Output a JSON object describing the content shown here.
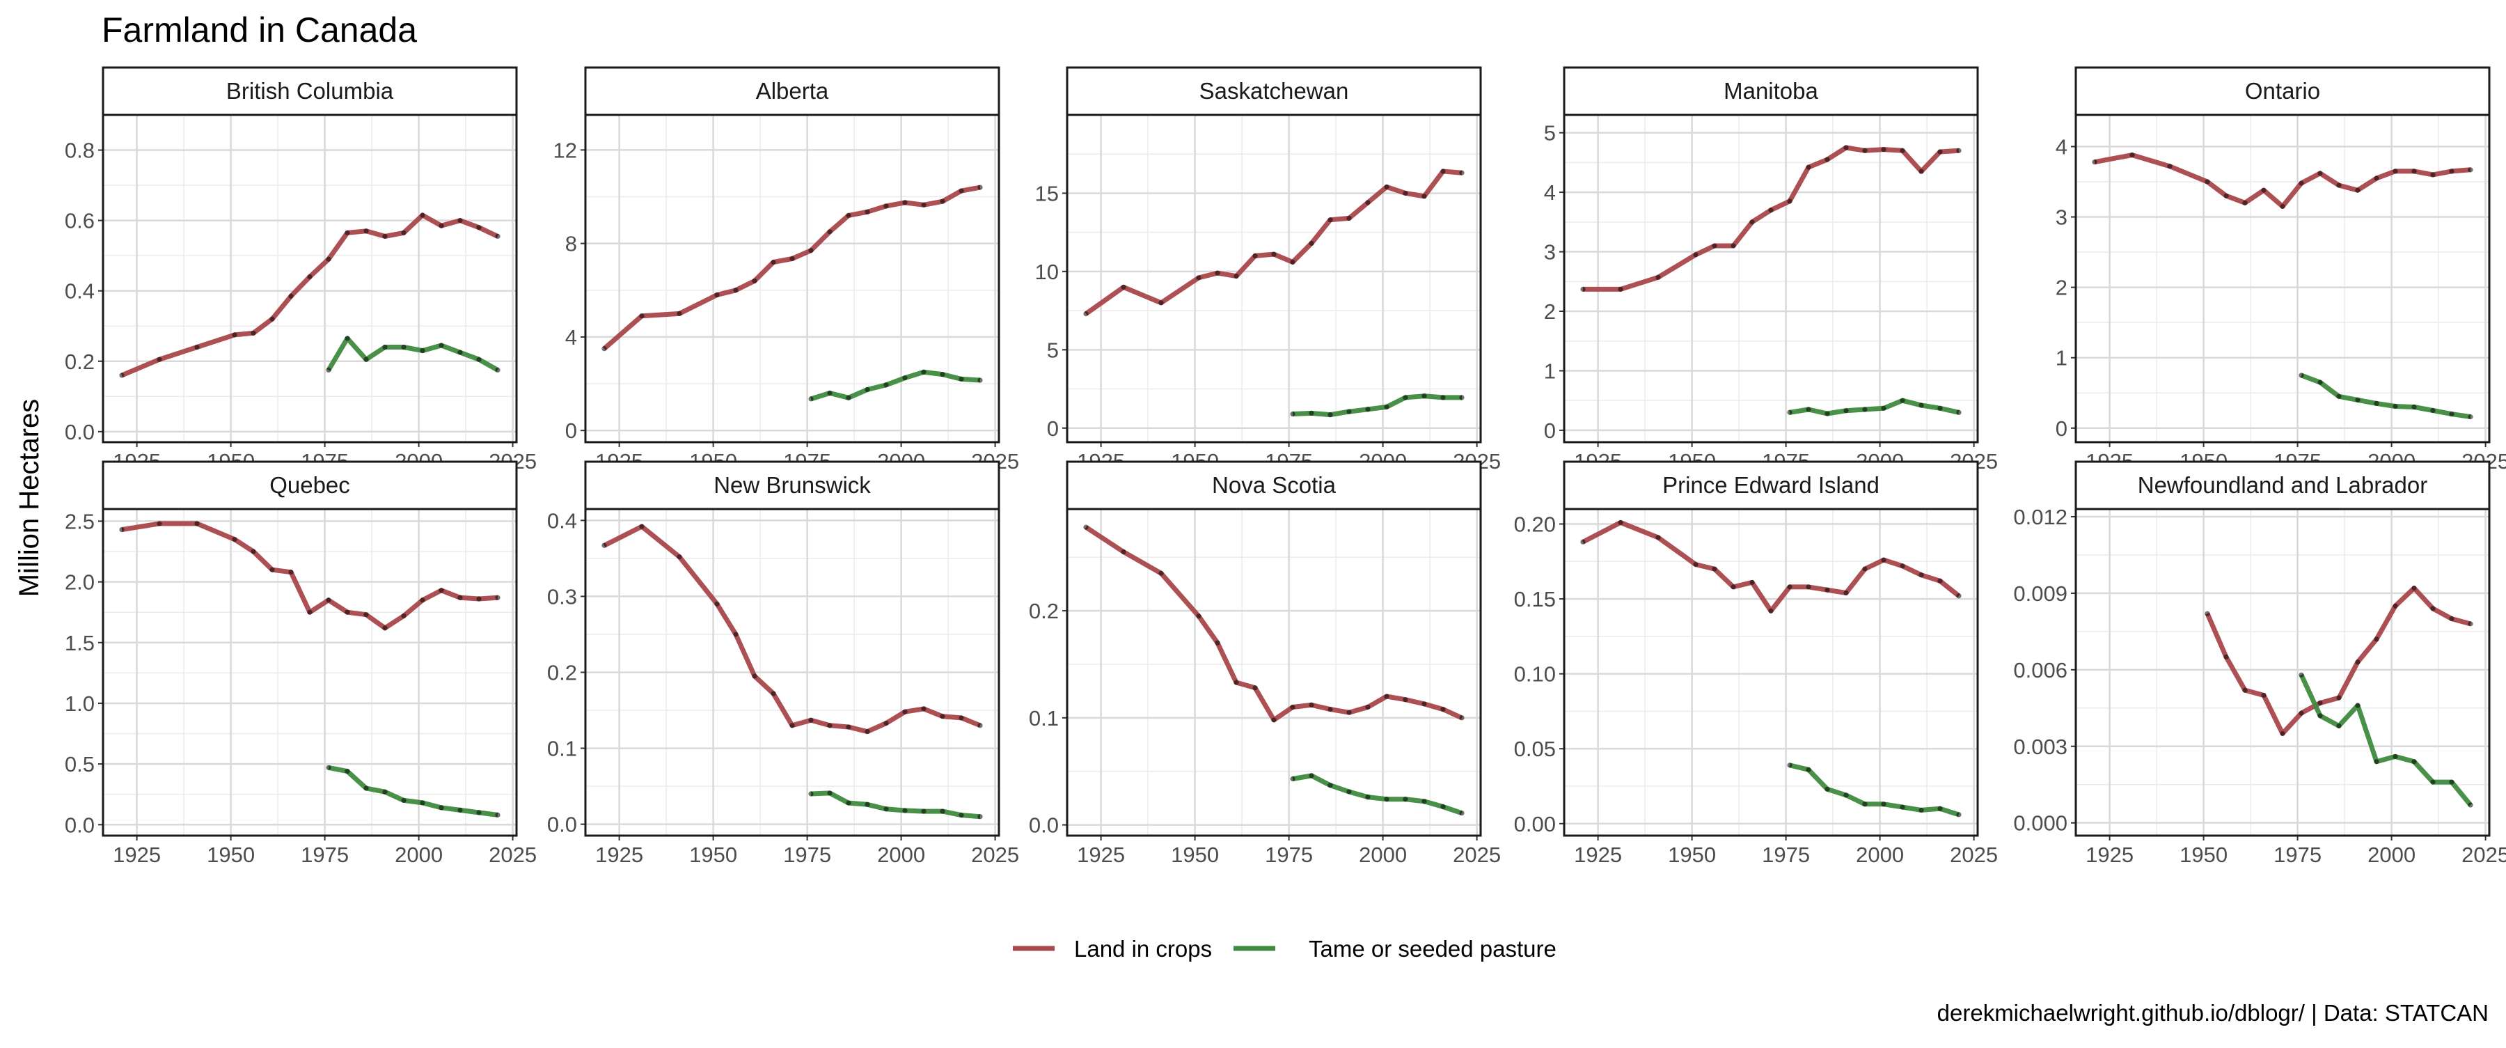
{
  "chart_data": {
    "type": "line",
    "title": "Farmland in Canada",
    "ylabel": "Million Hectares",
    "xlabel": "",
    "caption": "derekmichaelwright.github.io/dblogr/ | Data: STATCAN",
    "x_ticks": [
      1925,
      1950,
      1975,
      2000,
      2025
    ],
    "xlim": [
      1916,
      2026
    ],
    "legend_position": "bottom",
    "grid": true,
    "series_styles": [
      {
        "name": "Land in crops",
        "color": "#a9474b"
      },
      {
        "name": "Tame or seeded pasture",
        "color": "#3f8a3f"
      }
    ],
    "facets": [
      {
        "label": "British Columbia",
        "ylim": [
          -0.03,
          0.9
        ],
        "y_ticks": [
          0.0,
          0.2,
          0.4,
          0.6,
          0.8
        ],
        "y_tick_labels": [
          "0.0",
          "0.2",
          "0.4",
          "0.6",
          "0.8"
        ],
        "series": [
          {
            "name": "Land in crops",
            "x": [
              1921,
              1931,
              1941,
              1951,
              1956,
              1961,
              1966,
              1971,
              1976,
              1981,
              1986,
              1991,
              1996,
              2001,
              2006,
              2011,
              2016,
              2021
            ],
            "values": [
              0.16,
              0.205,
              0.24,
              0.275,
              0.28,
              0.32,
              0.385,
              0.44,
              0.49,
              0.565,
              0.57,
              0.555,
              0.565,
              0.615,
              0.585,
              0.6,
              0.58,
              0.555
            ]
          },
          {
            "name": "Tame or seeded pasture",
            "x": [
              1976,
              1981,
              1986,
              1991,
              1996,
              2001,
              2006,
              2011,
              2016,
              2021
            ],
            "values": [
              0.175,
              0.265,
              0.205,
              0.24,
              0.24,
              0.23,
              0.245,
              0.225,
              0.205,
              0.175
            ]
          }
        ]
      },
      {
        "label": "Alberta",
        "ylim": [
          -0.5,
          13.5
        ],
        "y_ticks": [
          0,
          4,
          8,
          12
        ],
        "y_tick_labels": [
          "0",
          "4",
          "8",
          "12"
        ],
        "series": [
          {
            "name": "Land in crops",
            "x": [
              1921,
              1931,
              1941,
              1951,
              1956,
              1961,
              1966,
              1971,
              1976,
              1981,
              1986,
              1991,
              1996,
              2001,
              2006,
              2011,
              2016,
              2021
            ],
            "values": [
              3.5,
              4.9,
              5.0,
              5.8,
              6.0,
              6.4,
              7.2,
              7.35,
              7.7,
              8.5,
              9.2,
              9.35,
              9.6,
              9.75,
              9.65,
              9.8,
              10.25,
              10.4
            ]
          },
          {
            "name": "Tame or seeded pasture",
            "x": [
              1976,
              1981,
              1986,
              1991,
              1996,
              2001,
              2006,
              2011,
              2016,
              2021
            ],
            "values": [
              1.35,
              1.6,
              1.4,
              1.75,
              1.95,
              2.25,
              2.5,
              2.4,
              2.2,
              2.15
            ]
          }
        ]
      },
      {
        "label": "Saskatchewan",
        "ylim": [
          -0.9,
          20
        ],
        "y_ticks": [
          0,
          5,
          10,
          15
        ],
        "y_tick_labels": [
          "0",
          "5",
          "10",
          "15"
        ],
        "series": [
          {
            "name": "Land in crops",
            "x": [
              1921,
              1931,
              1941,
              1951,
              1956,
              1961,
              1966,
              1971,
              1976,
              1981,
              1986,
              1991,
              1996,
              2001,
              2006,
              2011,
              2016,
              2021
            ],
            "values": [
              7.3,
              9.0,
              8.0,
              9.6,
              9.9,
              9.7,
              11.0,
              11.1,
              10.6,
              11.8,
              13.3,
              13.4,
              14.4,
              15.4,
              15.0,
              14.8,
              16.4,
              16.3
            ]
          },
          {
            "name": "Tame or seeded pasture",
            "x": [
              1976,
              1981,
              1986,
              1991,
              1996,
              2001,
              2006,
              2011,
              2016,
              2021
            ],
            "values": [
              0.9,
              0.95,
              0.85,
              1.05,
              1.2,
              1.35,
              1.95,
              2.05,
              1.95,
              1.95
            ]
          }
        ]
      },
      {
        "label": "Manitoba",
        "ylim": [
          -0.2,
          5.3
        ],
        "y_ticks": [
          0,
          1,
          2,
          3,
          4,
          5
        ],
        "y_tick_labels": [
          "0",
          "1",
          "2",
          "3",
          "4",
          "5"
        ],
        "series": [
          {
            "name": "Land in crops",
            "x": [
              1921,
              1931,
              1941,
              1951,
              1956,
              1961,
              1966,
              1971,
              1976,
              1981,
              1986,
              1991,
              1996,
              2001,
              2006,
              2011,
              2016,
              2021
            ],
            "values": [
              2.37,
              2.37,
              2.57,
              2.95,
              3.1,
              3.1,
              3.5,
              3.7,
              3.85,
              4.42,
              4.55,
              4.75,
              4.7,
              4.72,
              4.7,
              4.35,
              4.68,
              4.7
            ]
          },
          {
            "name": "Tame or seeded pasture",
            "x": [
              1976,
              1981,
              1986,
              1991,
              1996,
              2001,
              2006,
              2011,
              2016,
              2021
            ],
            "values": [
              0.3,
              0.35,
              0.28,
              0.33,
              0.35,
              0.37,
              0.5,
              0.42,
              0.37,
              0.3
            ]
          }
        ]
      },
      {
        "label": "Ontario",
        "ylim": [
          -0.2,
          4.45
        ],
        "y_ticks": [
          0,
          1,
          2,
          3,
          4
        ],
        "y_tick_labels": [
          "0",
          "1",
          "2",
          "3",
          "4"
        ],
        "series": [
          {
            "name": "Land in crops",
            "x": [
              1921,
              1931,
              1941,
              1951,
              1956,
              1961,
              1966,
              1971,
              1976,
              1981,
              1986,
              1991,
              1996,
              2001,
              2006,
              2011,
              2016,
              2021
            ],
            "values": [
              3.78,
              3.88,
              3.72,
              3.5,
              3.3,
              3.2,
              3.38,
              3.15,
              3.48,
              3.62,
              3.45,
              3.38,
              3.55,
              3.65,
              3.65,
              3.6,
              3.65,
              3.67
            ]
          },
          {
            "name": "Tame or seeded pasture",
            "x": [
              1976,
              1981,
              1986,
              1991,
              1996,
              2001,
              2006,
              2011,
              2016,
              2021
            ],
            "values": [
              0.75,
              0.65,
              0.45,
              0.4,
              0.35,
              0.31,
              0.3,
              0.25,
              0.2,
              0.16
            ]
          }
        ]
      },
      {
        "label": "Quebec",
        "ylim": [
          -0.09,
          2.6
        ],
        "y_ticks": [
          0.0,
          0.5,
          1.0,
          1.5,
          2.0,
          2.5
        ],
        "y_tick_labels": [
          "0.0",
          "0.5",
          "1.0",
          "1.5",
          "2.0",
          "2.5"
        ],
        "series": [
          {
            "name": "Land in crops",
            "x": [
              1921,
              1931,
              1941,
              1951,
              1956,
              1961,
              1966,
              1971,
              1976,
              1981,
              1986,
              1991,
              1996,
              2001,
              2006,
              2011,
              2016,
              2021
            ],
            "values": [
              2.43,
              2.48,
              2.48,
              2.35,
              2.25,
              2.1,
              2.08,
              1.75,
              1.85,
              1.75,
              1.73,
              1.62,
              1.72,
              1.85,
              1.93,
              1.87,
              1.86,
              1.87
            ]
          },
          {
            "name": "Tame or seeded pasture",
            "x": [
              1976,
              1981,
              1986,
              1991,
              1996,
              2001,
              2006,
              2011,
              2016,
              2021
            ],
            "values": [
              0.47,
              0.44,
              0.3,
              0.27,
              0.2,
              0.18,
              0.14,
              0.12,
              0.1,
              0.08
            ]
          }
        ]
      },
      {
        "label": "New Brunswick",
        "ylim": [
          -0.015,
          0.415
        ],
        "y_ticks": [
          0.0,
          0.1,
          0.2,
          0.3,
          0.4
        ],
        "y_tick_labels": [
          "0.0",
          "0.1",
          "0.2",
          "0.3",
          "0.4"
        ],
        "series": [
          {
            "name": "Land in crops",
            "x": [
              1921,
              1931,
              1941,
              1951,
              1956,
              1961,
              1966,
              1971,
              1976,
              1981,
              1986,
              1991,
              1996,
              2001,
              2006,
              2011,
              2016,
              2021
            ],
            "values": [
              0.367,
              0.392,
              0.352,
              0.29,
              0.25,
              0.195,
              0.172,
              0.13,
              0.137,
              0.13,
              0.128,
              0.122,
              0.133,
              0.148,
              0.152,
              0.142,
              0.14,
              0.13
            ]
          },
          {
            "name": "Tame or seeded pasture",
            "x": [
              1976,
              1981,
              1986,
              1991,
              1996,
              2001,
              2006,
              2011,
              2016,
              2021
            ],
            "values": [
              0.04,
              0.041,
              0.028,
              0.026,
              0.02,
              0.018,
              0.017,
              0.017,
              0.012,
              0.01
            ]
          }
        ]
      },
      {
        "label": "Nova Scotia",
        "ylim": [
          -0.01,
          0.295
        ],
        "y_ticks": [
          0.0,
          0.1,
          0.2
        ],
        "y_tick_labels": [
          "0.0",
          "0.1",
          "0.2"
        ],
        "series": [
          {
            "name": "Land in crops",
            "x": [
              1921,
              1931,
              1941,
              1951,
              1956,
              1961,
              1966,
              1971,
              1976,
              1981,
              1986,
              1991,
              1996,
              2001,
              2006,
              2011,
              2016,
              2021
            ],
            "values": [
              0.278,
              0.255,
              0.235,
              0.195,
              0.17,
              0.133,
              0.128,
              0.098,
              0.11,
              0.112,
              0.108,
              0.105,
              0.11,
              0.12,
              0.117,
              0.113,
              0.108,
              0.1
            ]
          },
          {
            "name": "Tame or seeded pasture",
            "x": [
              1976,
              1981,
              1986,
              1991,
              1996,
              2001,
              2006,
              2011,
              2016,
              2021
            ],
            "values": [
              0.043,
              0.046,
              0.037,
              0.031,
              0.026,
              0.024,
              0.024,
              0.022,
              0.017,
              0.011
            ]
          }
        ]
      },
      {
        "label": "Prince Edward Island",
        "ylim": [
          -0.008,
          0.21
        ],
        "y_ticks": [
          0.0,
          0.05,
          0.1,
          0.15,
          0.2
        ],
        "y_tick_labels": [
          "0.00",
          "0.05",
          "0.10",
          "0.15",
          "0.20"
        ],
        "series": [
          {
            "name": "Land in crops",
            "x": [
              1921,
              1931,
              1941,
              1951,
              1956,
              1961,
              1966,
              1971,
              1976,
              1981,
              1986,
              1991,
              1996,
              2001,
              2006,
              2011,
              2016,
              2021
            ],
            "values": [
              0.188,
              0.201,
              0.191,
              0.173,
              0.17,
              0.158,
              0.161,
              0.142,
              0.158,
              0.158,
              0.156,
              0.154,
              0.17,
              0.176,
              0.172,
              0.166,
              0.162,
              0.152
            ]
          },
          {
            "name": "Tame or seeded pasture",
            "x": [
              1976,
              1981,
              1986,
              1991,
              1996,
              2001,
              2006,
              2011,
              2016,
              2021
            ],
            "values": [
              0.039,
              0.036,
              0.023,
              0.019,
              0.013,
              0.013,
              0.011,
              0.009,
              0.01,
              0.006
            ]
          }
        ]
      },
      {
        "label": "Newfoundland and Labrador",
        "ylim": [
          -0.0005,
          0.0123
        ],
        "y_ticks": [
          0.0,
          0.003,
          0.006,
          0.009,
          0.012
        ],
        "y_tick_labels": [
          "0.000",
          "0.003",
          "0.006",
          "0.009",
          "0.012"
        ],
        "series": [
          {
            "name": "Land in crops",
            "x": [
              1951,
              1956,
              1961,
              1966,
              1971,
              1976,
              1981,
              1986,
              1991,
              1996,
              2001,
              2006,
              2011,
              2016,
              2021
            ],
            "values": [
              0.0082,
              0.0065,
              0.0052,
              0.005,
              0.0035,
              0.0043,
              0.0047,
              0.0049,
              0.0063,
              0.0072,
              0.0085,
              0.0092,
              0.0084,
              0.008,
              0.0078
            ]
          },
          {
            "name": "Tame or seeded pasture",
            "x": [
              1976,
              1981,
              1986,
              1991,
              1996,
              2001,
              2006,
              2011,
              2016,
              2021
            ],
            "values": [
              0.0058,
              0.0042,
              0.0038,
              0.0046,
              0.0024,
              0.0026,
              0.0024,
              0.0016,
              0.0016,
              0.0007
            ]
          }
        ]
      }
    ]
  }
}
